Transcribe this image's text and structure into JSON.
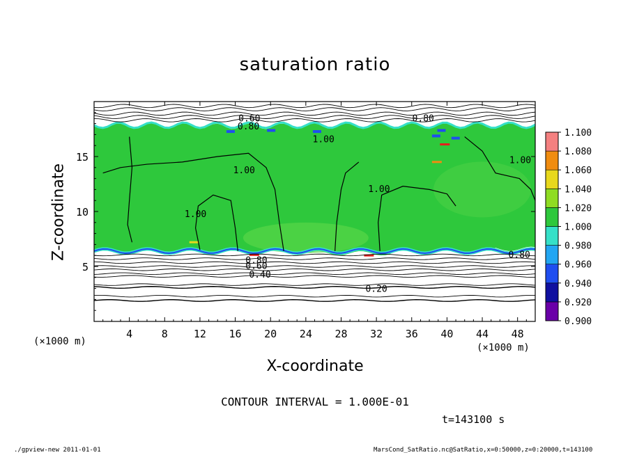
{
  "chart_data": {
    "type": "heatmap",
    "title": "saturation ratio",
    "xlabel": "X-coordinate",
    "ylabel": "Z-coordinate",
    "x_unit_label": "(×1000 m)",
    "xlim": [
      0,
      50
    ],
    "ylim": [
      0,
      20
    ],
    "x_ticks": [
      4,
      8,
      12,
      16,
      20,
      24,
      28,
      32,
      36,
      40,
      44,
      48
    ],
    "y_ticks": [
      5,
      10,
      15
    ],
    "colorbar": {
      "levels": [
        "0.900",
        "0.920",
        "0.940",
        "0.960",
        "0.980",
        "1.000",
        "1.020",
        "1.040",
        "1.060",
        "1.080",
        "1.100"
      ],
      "colors": [
        "#6a00a8",
        "#1010a0",
        "#1f4ef0",
        "#22a6f2",
        "#35e0c8",
        "#2ec83c",
        "#8fdc22",
        "#e8d81c",
        "#f08c10",
        "#e81c1c",
        "#f48080"
      ]
    },
    "contour_labels": [
      {
        "text": "0.60",
        "x": 17.6,
        "y": 18.5
      },
      {
        "text": "0.80",
        "x": 17.5,
        "y": 17.8
      },
      {
        "text": "0.80",
        "x": 37.3,
        "y": 18.5
      },
      {
        "text": "1.00",
        "x": 26.0,
        "y": 16.6
      },
      {
        "text": "1.00",
        "x": 17.0,
        "y": 13.8
      },
      {
        "text": "1.00",
        "x": 32.3,
        "y": 12.1
      },
      {
        "text": "1.00",
        "x": 11.5,
        "y": 9.8
      },
      {
        "text": "1.00",
        "x": 48.3,
        "y": 14.7
      },
      {
        "text": "0.80",
        "x": 18.4,
        "y": 5.6
      },
      {
        "text": "0.60",
        "x": 18.4,
        "y": 5.1
      },
      {
        "text": "0.80",
        "x": 48.2,
        "y": 6.1
      },
      {
        "text": "0.40",
        "x": 18.8,
        "y": 4.3
      },
      {
        "text": "0.20",
        "x": 32.0,
        "y": 3.0
      }
    ],
    "contour_interval": "CONTOUR INTERVAL = 1.000E-01"
  },
  "time_label": "t=143100 s",
  "footer": {
    "left": "./gpview-new   2011-01-01",
    "right": "MarsCond_SatRatio.nc@SatRatio,x=0:50000,z=0:20000,t=143100"
  }
}
